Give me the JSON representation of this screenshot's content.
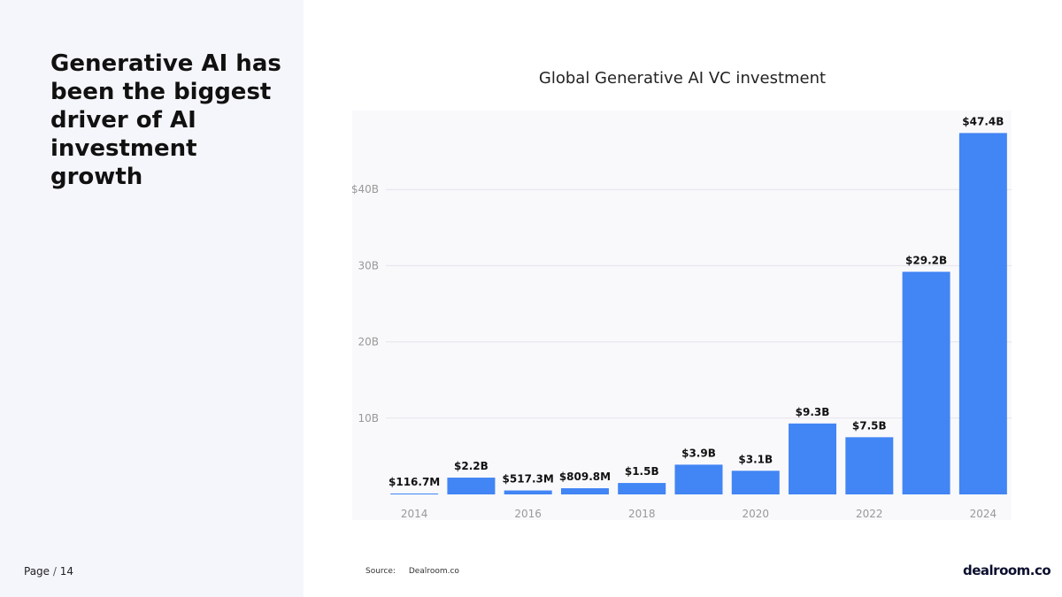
{
  "slide": {
    "headline": "Generative AI has been the biggest driver of AI investment growth",
    "page_word": "Page",
    "page_sep": "/",
    "page_number": "14",
    "source_label": "Source:",
    "source_value": "Dealroom.co",
    "logo_text": "dealroom.co"
  },
  "colors": {
    "bar": "#4285f4",
    "plot_bg": "#f9f9fc",
    "grid": "#e3e3ea",
    "axis_text": "#999999"
  },
  "chart_data": {
    "type": "bar",
    "title": "Global Generative AI VC investment",
    "xlabel": "",
    "ylabel": "",
    "categories": [
      "2014",
      "2015",
      "2016",
      "2017",
      "2018",
      "2019",
      "2020",
      "2021",
      "2022",
      "2023",
      "2024"
    ],
    "x_tick_labels": [
      "2014",
      "",
      "2016",
      "",
      "2018",
      "",
      "2020",
      "",
      "2022",
      "",
      "2024"
    ],
    "values": [
      0.1167,
      2.2,
      0.5173,
      0.8098,
      1.5,
      3.9,
      3.1,
      9.3,
      7.5,
      29.2,
      47.4
    ],
    "value_labels": [
      "$116.7M",
      "$2.2B",
      "$517.3M",
      "$809.8M",
      "$1.5B",
      "$3.9B",
      "$3.1B",
      "$9.3B",
      "$7.5B",
      "$29.2B",
      "$47.4B"
    ],
    "y_ticks": [
      10,
      20,
      30,
      40
    ],
    "y_tick_labels": [
      "10B",
      "20B",
      "30B",
      "$40B"
    ],
    "ylim": [
      0,
      50
    ],
    "unit": "B",
    "grid": true,
    "legend": "none"
  }
}
